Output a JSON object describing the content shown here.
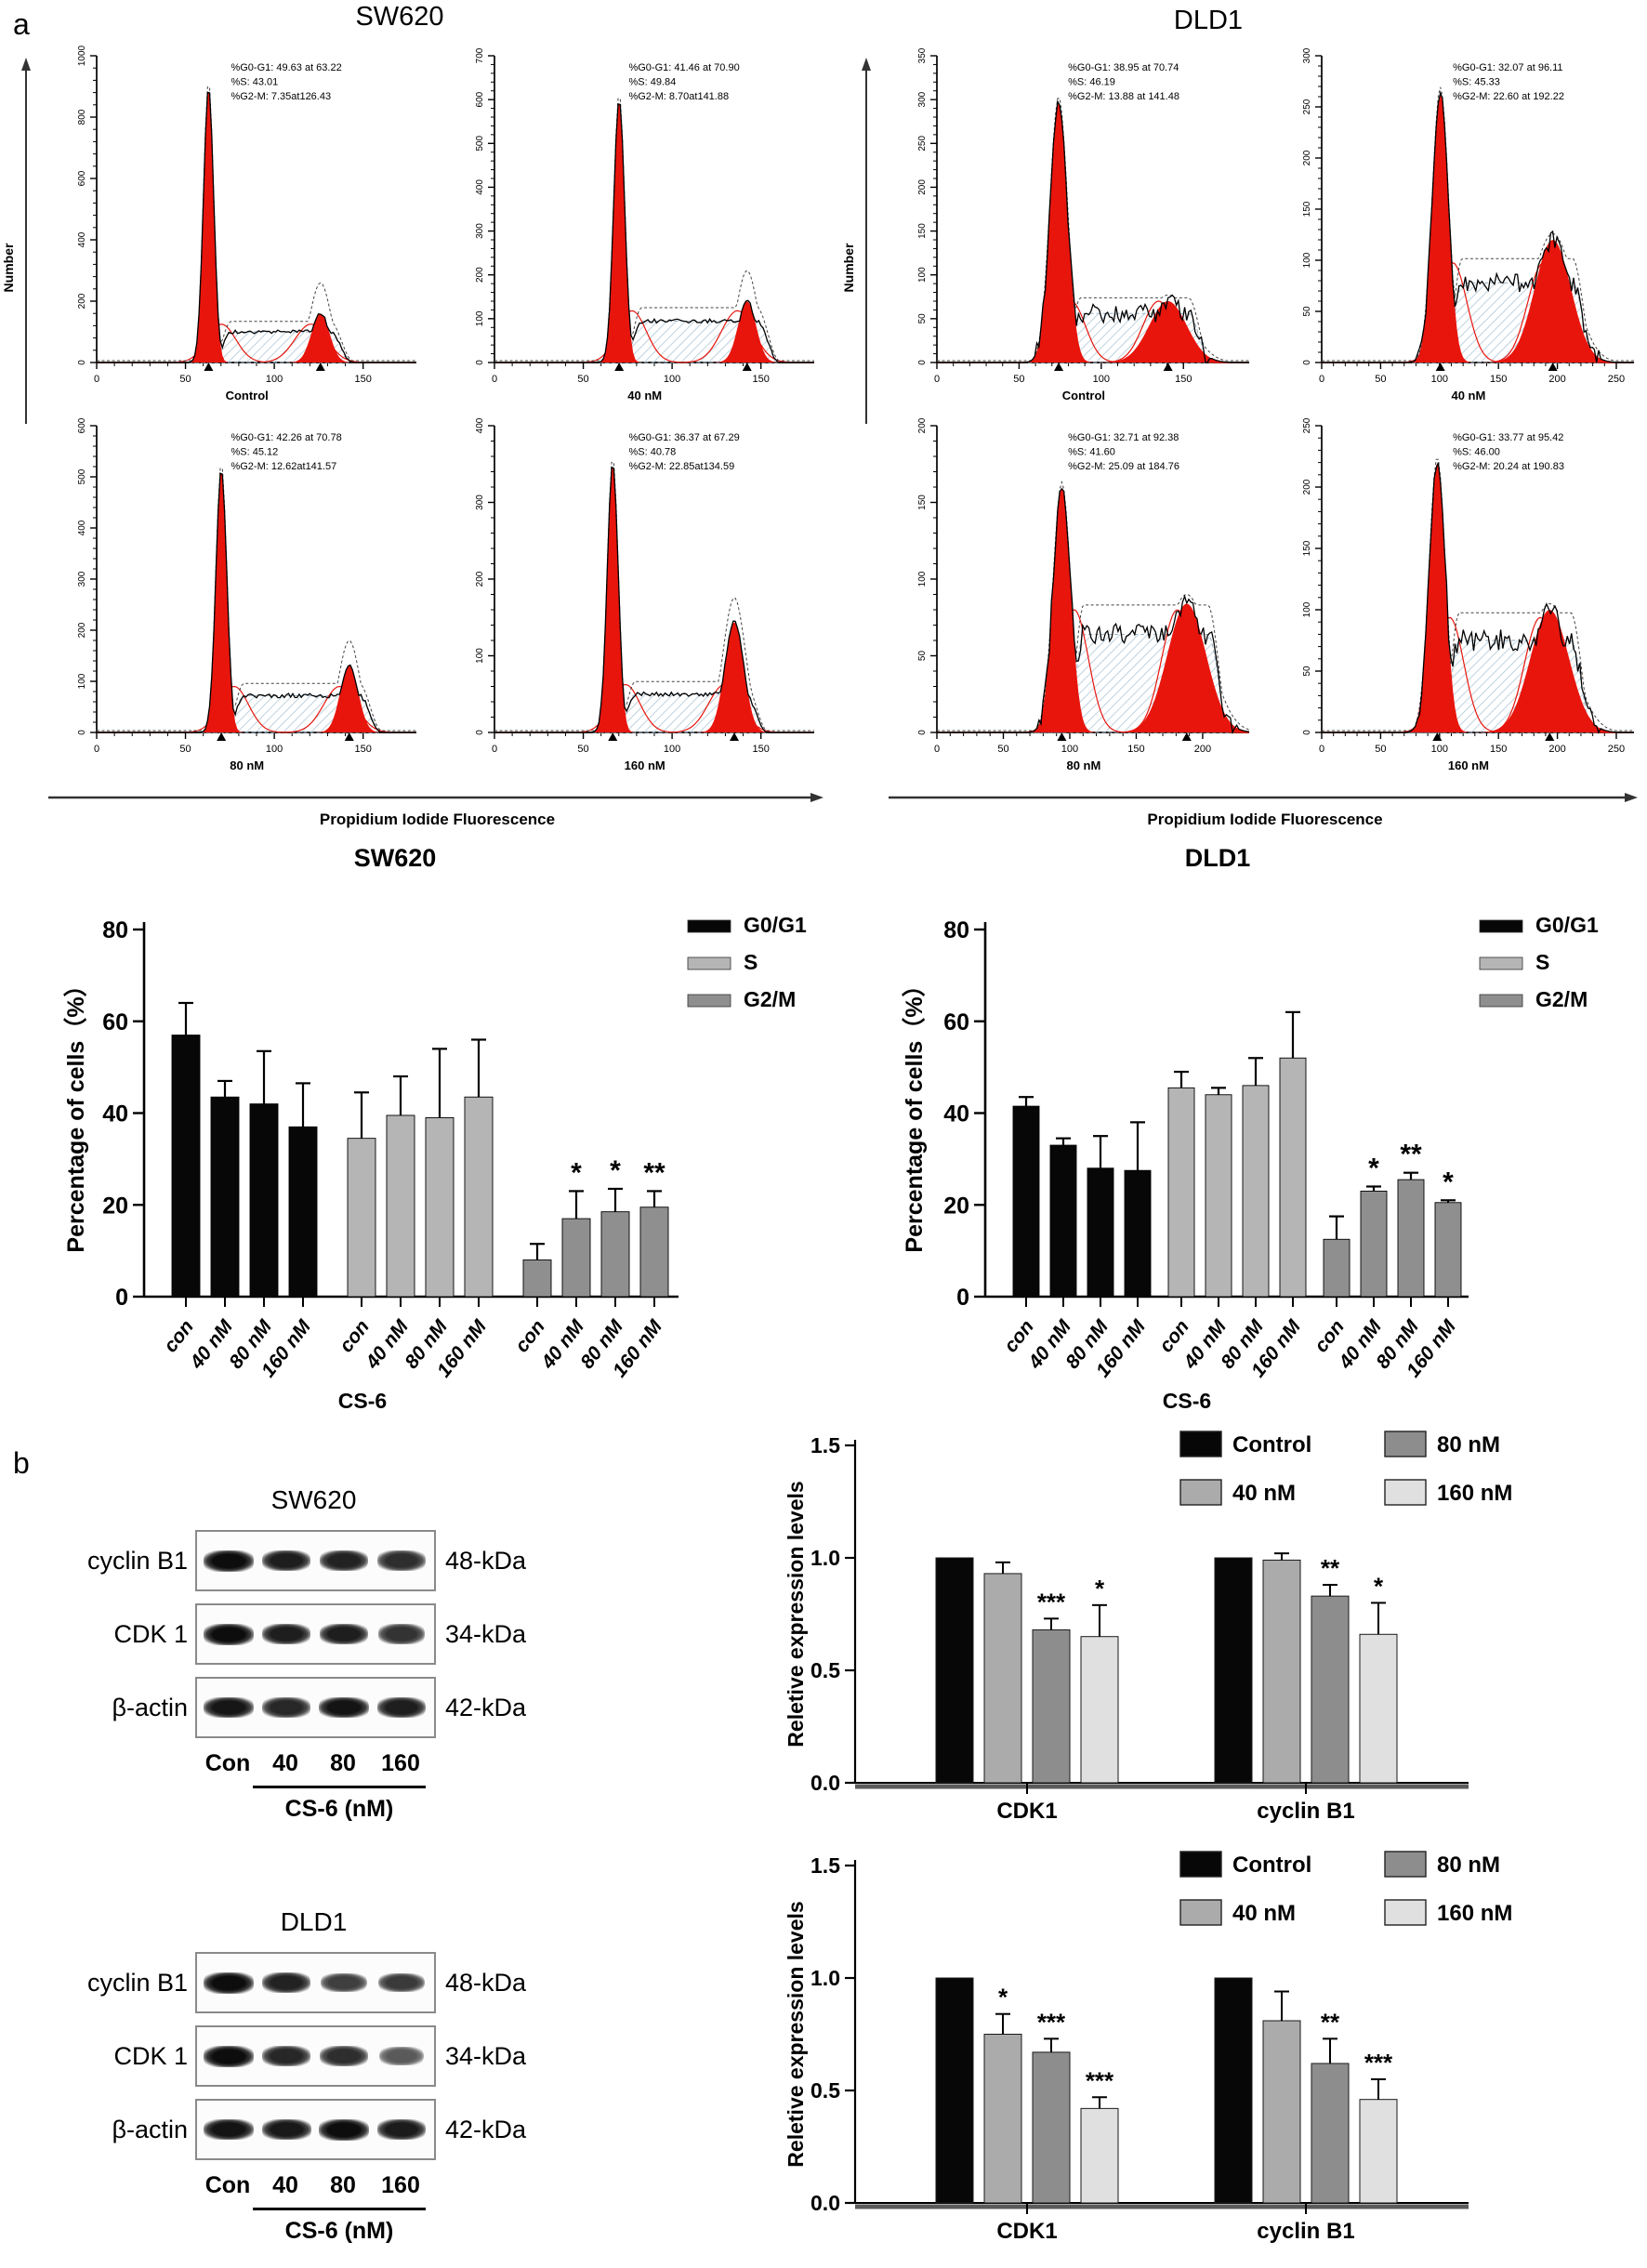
{
  "figure": {
    "panel_a_label": "a",
    "panel_b_label": "b"
  },
  "colors": {
    "black": "#070707",
    "s_gray": "#b5b5b5",
    "g2m_gray": "#8f8f8f",
    "c40": "#ababab",
    "c80": "#8d8d8d",
    "c160": "#e0e0e0",
    "red": "#e8150d",
    "hatch": "#a9c4d4"
  },
  "flow_groups": [
    {
      "id": "sw620",
      "title": "SW620",
      "y_axis_label": "Number",
      "x_axis_label": "Propidium Iodide Fluorescence",
      "panels": [
        {
          "name": "Control",
          "stats": [
            "%G0-G1: 49.63 at 63.22",
            "%S: 43.01",
            "%G2-M: 7.35at126.43"
          ],
          "yticks": [
            0,
            200,
            400,
            600,
            800,
            1000
          ],
          "xticks": [
            0,
            50,
            100,
            150
          ],
          "xmax": 180,
          "g1": 0.35,
          "g1h": 0.9,
          "g1s": 0.016,
          "g2": 0.7,
          "g2h": 0.16,
          "g2s": 0.028,
          "sh": 0.1,
          "dg2": 0.26,
          "nz": 0.006
        },
        {
          "name": "40 nM",
          "stats": [
            "%G0-G1: 41.46 at 70.90",
            "%S: 49.84",
            "%G2-M: 8.70at141.88"
          ],
          "yticks": [
            0,
            100,
            200,
            300,
            400,
            500,
            600,
            700
          ],
          "xticks": [
            0,
            50,
            100,
            150
          ],
          "xmax": 180,
          "g1": 0.39,
          "g1h": 0.86,
          "g1s": 0.017,
          "g2": 0.79,
          "g2h": 0.2,
          "g2s": 0.028,
          "sh": 0.135,
          "dg2": 0.3,
          "nz": 0.007
        },
        {
          "name": "80 nM",
          "stats": [
            "%G0-G1: 42.26 at 70.78",
            "%S: 45.12",
            "%G2-M: 12.62at141.57"
          ],
          "yticks": [
            0,
            100,
            200,
            300,
            400,
            500,
            600
          ],
          "xticks": [
            0,
            50,
            100,
            150
          ],
          "xmax": 180,
          "g1": 0.39,
          "g1h": 0.86,
          "g1s": 0.017,
          "g2": 0.79,
          "g2h": 0.22,
          "g2s": 0.028,
          "sh": 0.12,
          "dg2": 0.3,
          "nz": 0.007
        },
        {
          "name": "160 nM",
          "stats": [
            "%G0-G1: 36.37 at 67.29",
            "%S: 40.78",
            "%G2-M: 22.85at134.59"
          ],
          "yticks": [
            0,
            100,
            200,
            300,
            400
          ],
          "xticks": [
            0,
            50,
            100,
            150
          ],
          "xmax": 180,
          "g1": 0.37,
          "g1h": 0.88,
          "g1s": 0.017,
          "g2": 0.75,
          "g2h": 0.36,
          "g2s": 0.03,
          "sh": 0.125,
          "dg2": 0.44,
          "nz": 0.007
        }
      ]
    },
    {
      "id": "dld1",
      "title": "DLD1",
      "y_axis_label": "Number",
      "x_axis_label": "Propidium Iodide Fluorescence",
      "panels": [
        {
          "name": "Control",
          "stats": [
            "%G0-G1: 38.95 at 70.74",
            "%S: 46.19",
            "%G2-M: 13.88 at 141.48"
          ],
          "yticks": [
            0,
            50,
            100,
            150,
            200,
            250,
            300,
            350
          ],
          "xticks": [
            0,
            50,
            100,
            150
          ],
          "xmax": 190,
          "g1": 0.39,
          "g1h": 0.85,
          "g1s": 0.028,
          "g2": 0.74,
          "g2h": 0.2,
          "g2s": 0.06,
          "sh": 0.16,
          "dg2": 0.22,
          "nz": 0.03
        },
        {
          "name": "40 nM",
          "stats": [
            "%G0-G1: 32.07 at 96.11",
            "%S: 45.33",
            "%G2-M: 22.60 at 192.22"
          ],
          "yticks": [
            0,
            50,
            100,
            150,
            200,
            250,
            300
          ],
          "xticks": [
            0,
            50,
            100,
            150,
            200,
            250
          ],
          "xmax": 265,
          "g1": 0.38,
          "g1h": 0.88,
          "g1s": 0.026,
          "g2": 0.74,
          "g2h": 0.4,
          "g2s": 0.058,
          "sh": 0.26,
          "dg2": 0.42,
          "nz": 0.03
        },
        {
          "name": "80 nM",
          "stats": [
            "%G0-G1: 32.71 at 92.38",
            "%S: 41.60",
            "%G2-M: 25.09 at 184.76"
          ],
          "yticks": [
            0,
            50,
            100,
            150,
            200
          ],
          "xticks": [
            0,
            50,
            100,
            150,
            200
          ],
          "xmax": 235,
          "g1": 0.4,
          "g1h": 0.8,
          "g1s": 0.028,
          "g2": 0.8,
          "g2h": 0.42,
          "g2s": 0.062,
          "sh": 0.32,
          "dg2": 0.45,
          "nz": 0.035
        },
        {
          "name": "160 nM",
          "stats": [
            "%G0-G1: 33.77 at 95.42",
            "%S: 46.00",
            "%G2-M: 20.24 at 190.83"
          ],
          "yticks": [
            0,
            50,
            100,
            150,
            200,
            250
          ],
          "xticks": [
            0,
            50,
            100,
            150,
            200,
            250
          ],
          "xmax": 265,
          "g1": 0.37,
          "g1h": 0.88,
          "g1s": 0.026,
          "g2": 0.73,
          "g2h": 0.4,
          "g2s": 0.062,
          "sh": 0.3,
          "dg2": 0.42,
          "nz": 0.035
        }
      ]
    }
  ],
  "chart_data": [
    {
      "id": "sw620_pct",
      "type": "bar",
      "title": "SW620",
      "ylabel": "Percentage of cells（%）",
      "xlabel": "CS-6",
      "ylim": [
        0,
        80
      ],
      "yticks": [
        0,
        20,
        40,
        60,
        80
      ],
      "categories": [
        "con",
        "40 nM",
        "80 nM",
        "160 nM"
      ],
      "legend_position": "right",
      "series": [
        {
          "name": "G0/G1",
          "color": "black",
          "values": [
            57,
            43.5,
            42,
            37
          ],
          "errors": [
            7,
            3.5,
            11.5,
            9.5
          ],
          "sig": [
            "",
            "",
            "",
            ""
          ]
        },
        {
          "name": "S",
          "color": "s_gray",
          "values": [
            34.5,
            39.5,
            39,
            43.5
          ],
          "errors": [
            10,
            8.5,
            15,
            12.5
          ],
          "sig": [
            "",
            "",
            "",
            ""
          ]
        },
        {
          "name": "G2/M",
          "color": "g2m_gray",
          "values": [
            8,
            17,
            18.5,
            19.5
          ],
          "errors": [
            3.5,
            6,
            5,
            3.5
          ],
          "sig": [
            "",
            "*",
            "*",
            "**"
          ]
        }
      ]
    },
    {
      "id": "dld1_pct",
      "type": "bar",
      "title": "DLD1",
      "ylabel": "Percentage of cells（%）",
      "xlabel": "CS-6",
      "ylim": [
        0,
        80
      ],
      "yticks": [
        0,
        20,
        40,
        60,
        80
      ],
      "categories": [
        "con",
        "40 nM",
        "80 nM",
        "160 nM"
      ],
      "legend_position": "right",
      "series": [
        {
          "name": "G0/G1",
          "color": "black",
          "values": [
            41.5,
            33,
            28,
            27.5
          ],
          "errors": [
            2,
            1.5,
            7,
            10.5
          ],
          "sig": [
            "",
            "",
            "",
            ""
          ]
        },
        {
          "name": "S",
          "color": "s_gray",
          "values": [
            45.5,
            44,
            46,
            52
          ],
          "errors": [
            3.5,
            1.5,
            6,
            10
          ],
          "sig": [
            "",
            "",
            "",
            ""
          ]
        },
        {
          "name": "G2/M",
          "color": "g2m_gray",
          "values": [
            12.5,
            23,
            25.5,
            20.5
          ],
          "errors": [
            5,
            1,
            1.5,
            0.5
          ],
          "sig": [
            "",
            "*",
            "**",
            "*"
          ]
        }
      ]
    },
    {
      "id": "sw620_expr",
      "type": "bar",
      "title": "",
      "ylabel": "Reletive expression levels",
      "ylim": [
        0,
        1.5
      ],
      "yticks": [
        0,
        0.5,
        1,
        1.5
      ],
      "legend": [
        "Control",
        "40 nM",
        "80 nM",
        "160 nM"
      ],
      "legend_colors": [
        "black",
        "c40",
        "c80",
        "c160"
      ],
      "groups": [
        {
          "label": "CDK1",
          "values": [
            1,
            0.93,
            0.68,
            0.65
          ],
          "errors": [
            0,
            0.05,
            0.05,
            0.14
          ],
          "sig": [
            "",
            "",
            "***",
            "*"
          ]
        },
        {
          "label": "cyclin B1",
          "values": [
            1,
            0.99,
            0.83,
            0.66
          ],
          "errors": [
            0,
            0.03,
            0.05,
            0.14
          ],
          "sig": [
            "",
            "",
            "**",
            "*"
          ]
        }
      ]
    },
    {
      "id": "dld1_expr",
      "type": "bar",
      "title": "",
      "ylabel": "Reletive expression levels",
      "ylim": [
        0,
        1.5
      ],
      "yticks": [
        0,
        0.5,
        1,
        1.5
      ],
      "legend": [
        "Control",
        "40 nM",
        "80 nM",
        "160 nM"
      ],
      "legend_colors": [
        "black",
        "c40",
        "c80",
        "c160"
      ],
      "groups": [
        {
          "label": "CDK1",
          "values": [
            1,
            0.75,
            0.67,
            0.42
          ],
          "errors": [
            0,
            0.09,
            0.06,
            0.05
          ],
          "sig": [
            "",
            "*",
            "***",
            "***"
          ]
        },
        {
          "label": "cyclin B1",
          "values": [
            1,
            0.81,
            0.62,
            0.46
          ],
          "errors": [
            0,
            0.13,
            0.11,
            0.09
          ],
          "sig": [
            "",
            "",
            "**",
            "***"
          ]
        }
      ]
    }
  ],
  "blots": [
    {
      "title": "SW620",
      "lanes": [
        "Con",
        "40",
        "80",
        "160"
      ],
      "treatment_label": "CS-6 (nM)",
      "rows": [
        {
          "label": "cyclin B1",
          "kda": "48-kDa",
          "bands": [
            1,
            0.85,
            0.82,
            0.72
          ]
        },
        {
          "label": "CDK 1",
          "kda": "34-kDa",
          "bands": [
            1,
            0.86,
            0.85,
            0.68
          ]
        },
        {
          "label": "β-actin",
          "kda": "42-kDa",
          "bands": [
            0.92,
            0.78,
            0.95,
            0.85
          ]
        }
      ]
    },
    {
      "title": "DLD1",
      "lanes": [
        "Con",
        "40",
        "80",
        "160"
      ],
      "treatment_label": "CS-6 (nM)",
      "rows": [
        {
          "label": "cyclin B1",
          "kda": "48-kDa",
          "bands": [
            1,
            0.82,
            0.58,
            0.62
          ]
        },
        {
          "label": "CDK 1",
          "kda": "34-kDa",
          "bands": [
            1,
            0.78,
            0.72,
            0.35
          ]
        },
        {
          "label": "β-actin",
          "kda": "42-kDa",
          "bands": [
            0.95,
            0.9,
            1,
            0.88
          ]
        }
      ]
    }
  ]
}
